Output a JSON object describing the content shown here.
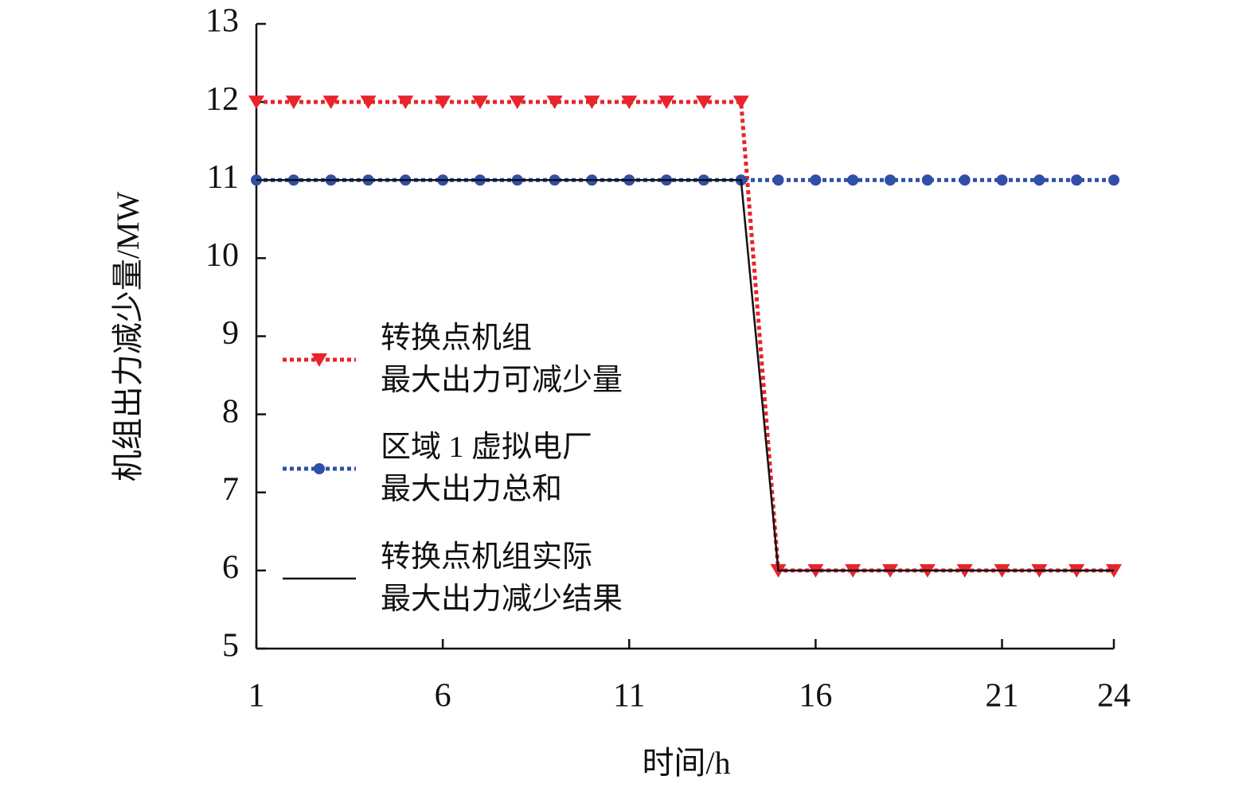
{
  "chart_data": {
    "type": "line",
    "x_label": "时间/h",
    "y_label": "机组出力减少量/MW",
    "x": [
      1,
      2,
      3,
      4,
      5,
      6,
      7,
      8,
      9,
      10,
      11,
      12,
      13,
      14,
      15,
      16,
      17,
      18,
      19,
      20,
      21,
      22,
      23,
      24
    ],
    "xlim": [
      1,
      24
    ],
    "xticks": [
      1,
      6,
      11,
      16,
      21,
      24
    ],
    "ylim": [
      5,
      13
    ],
    "yticks": [
      5,
      6,
      7,
      8,
      9,
      10,
      11,
      12,
      13
    ],
    "grid": false,
    "legend": "left",
    "series": [
      {
        "name": "转换点机组\n最大出力可减少量",
        "color": "#e8242c",
        "style": "dotted",
        "marker": "triangle-down",
        "values": [
          12,
          12,
          12,
          12,
          12,
          12,
          12,
          12,
          12,
          12,
          12,
          12,
          12,
          12,
          6,
          6,
          6,
          6,
          6,
          6,
          6,
          6,
          6,
          6
        ]
      },
      {
        "name": "区域 1 虚拟电厂\n最大出力总和",
        "color": "#2f4fa8",
        "style": "dotted",
        "marker": "circle",
        "values": [
          11,
          11,
          11,
          11,
          11,
          11,
          11,
          11,
          11,
          11,
          11,
          11,
          11,
          11,
          11,
          11,
          11,
          11,
          11,
          11,
          11,
          11,
          11,
          11
        ]
      },
      {
        "name": "转换点机组实际\n最大出力减少结果",
        "color": "#111111",
        "style": "solid",
        "marker": "none",
        "values": [
          11,
          11,
          11,
          11,
          11,
          11,
          11,
          11,
          11,
          11,
          11,
          11,
          11,
          11,
          6,
          6,
          6,
          6,
          6,
          6,
          6,
          6,
          6,
          6
        ]
      }
    ]
  }
}
